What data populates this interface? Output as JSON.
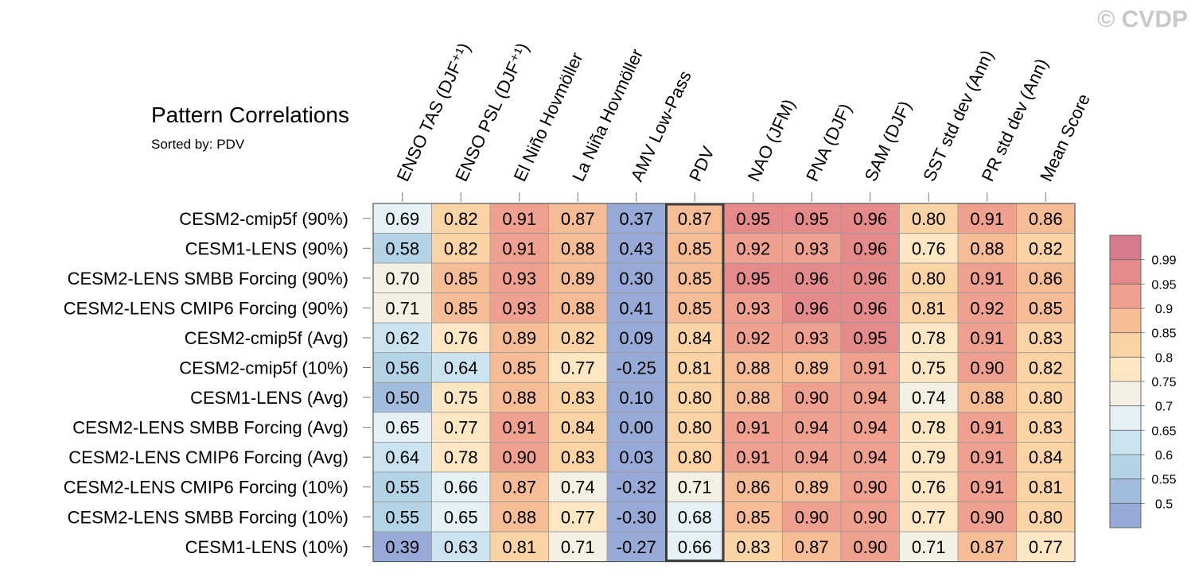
{
  "watermark": "© CVDP",
  "chart_data": {
    "type": "heatmap",
    "title": "Pattern Correlations",
    "subtitle": "Sorted by: PDV",
    "columns": [
      "ENSO TAS (DJF⁺¹)",
      "ENSO PSL (DJF⁺¹)",
      "El Niño Hovmöller",
      "La Niña Hovmöller",
      "AMV Low-Pass",
      "PDV",
      "NAO (JFM)",
      "PNA (DJF)",
      "SAM (DJF)",
      "SST std dev (Ann)",
      "PR std dev (Ann)",
      "Mean Score"
    ],
    "highlighted_column": "PDV",
    "rows": [
      "CESM2-cmip5f (90%)",
      "CESM1-LENS (90%)",
      "CESM2-LENS SMBB Forcing (90%)",
      "CESM2-LENS CMIP6 Forcing (90%)",
      "CESM2-cmip5f (Avg)",
      "CESM2-cmip5f (10%)",
      "CESM1-LENS (Avg)",
      "CESM2-LENS SMBB Forcing (Avg)",
      "CESM2-LENS CMIP6 Forcing (Avg)",
      "CESM2-LENS CMIP6 Forcing (10%)",
      "CESM2-LENS SMBB Forcing (10%)",
      "CESM1-LENS (10%)"
    ],
    "values": [
      [
        "0.69",
        "0.82",
        "0.91",
        "0.87",
        "0.37",
        "0.87",
        "0.95",
        "0.95",
        "0.96",
        "0.80",
        "0.91",
        "0.86"
      ],
      [
        "0.58",
        "0.82",
        "0.91",
        "0.88",
        "0.43",
        "0.85",
        "0.92",
        "0.93",
        "0.96",
        "0.76",
        "0.88",
        "0.82"
      ],
      [
        "0.70",
        "0.85",
        "0.93",
        "0.89",
        "0.30",
        "0.85",
        "0.95",
        "0.96",
        "0.96",
        "0.80",
        "0.91",
        "0.86"
      ],
      [
        "0.71",
        "0.85",
        "0.93",
        "0.88",
        "0.41",
        "0.85",
        "0.93",
        "0.96",
        "0.96",
        "0.81",
        "0.92",
        "0.85"
      ],
      [
        "0.62",
        "0.76",
        "0.89",
        "0.82",
        "0.09",
        "0.84",
        "0.92",
        "0.93",
        "0.95",
        "0.78",
        "0.91",
        "0.83"
      ],
      [
        "0.56",
        "0.64",
        "0.85",
        "0.77",
        "-0.25",
        "0.81",
        "0.88",
        "0.89",
        "0.91",
        "0.75",
        "0.90",
        "0.82"
      ],
      [
        "0.50",
        "0.75",
        "0.88",
        "0.83",
        "0.10",
        "0.80",
        "0.88",
        "0.90",
        "0.94",
        "0.74",
        "0.88",
        "0.80"
      ],
      [
        "0.65",
        "0.77",
        "0.91",
        "0.84",
        "0.00",
        "0.80",
        "0.91",
        "0.94",
        "0.94",
        "0.78",
        "0.91",
        "0.83"
      ],
      [
        "0.64",
        "0.78",
        "0.90",
        "0.83",
        "0.03",
        "0.80",
        "0.91",
        "0.94",
        "0.94",
        "0.79",
        "0.91",
        "0.84"
      ],
      [
        "0.55",
        "0.66",
        "0.87",
        "0.74",
        "-0.32",
        "0.71",
        "0.86",
        "0.89",
        "0.90",
        "0.76",
        "0.91",
        "0.81"
      ],
      [
        "0.55",
        "0.65",
        "0.88",
        "0.77",
        "-0.30",
        "0.68",
        "0.85",
        "0.90",
        "0.90",
        "0.77",
        "0.90",
        "0.80"
      ],
      [
        "0.39",
        "0.63",
        "0.81",
        "0.71",
        "-0.27",
        "0.66",
        "0.83",
        "0.87",
        "0.90",
        "0.71",
        "0.87",
        "0.77"
      ]
    ],
    "colorbar": {
      "labels": [
        "0.99",
        "0.95",
        "0.9",
        "0.85",
        "0.8",
        "0.75",
        "0.7",
        "0.65",
        "0.6",
        "0.55",
        "0.5"
      ],
      "bins": [
        {
          "min": 0.99,
          "max": 1.0,
          "color": "#d57b8b"
        },
        {
          "min": 0.95,
          "max": 0.99,
          "color": "#e58a8a"
        },
        {
          "min": 0.9,
          "max": 0.95,
          "color": "#f0a08e"
        },
        {
          "min": 0.85,
          "max": 0.9,
          "color": "#f6bc96"
        },
        {
          "min": 0.8,
          "max": 0.85,
          "color": "#fbd3a5"
        },
        {
          "min": 0.75,
          "max": 0.8,
          "color": "#fde7c2"
        },
        {
          "min": 0.7,
          "max": 0.75,
          "color": "#f4f1e4"
        },
        {
          "min": 0.65,
          "max": 0.7,
          "color": "#e5f1f4"
        },
        {
          "min": 0.6,
          "max": 0.65,
          "color": "#cbe3ef"
        },
        {
          "min": 0.55,
          "max": 0.6,
          "color": "#b3d3e7"
        },
        {
          "min": 0.5,
          "max": 0.55,
          "color": "#a2bcdd"
        },
        {
          "min": -1.0,
          "max": 0.5,
          "color": "#97a9d7"
        }
      ]
    }
  }
}
